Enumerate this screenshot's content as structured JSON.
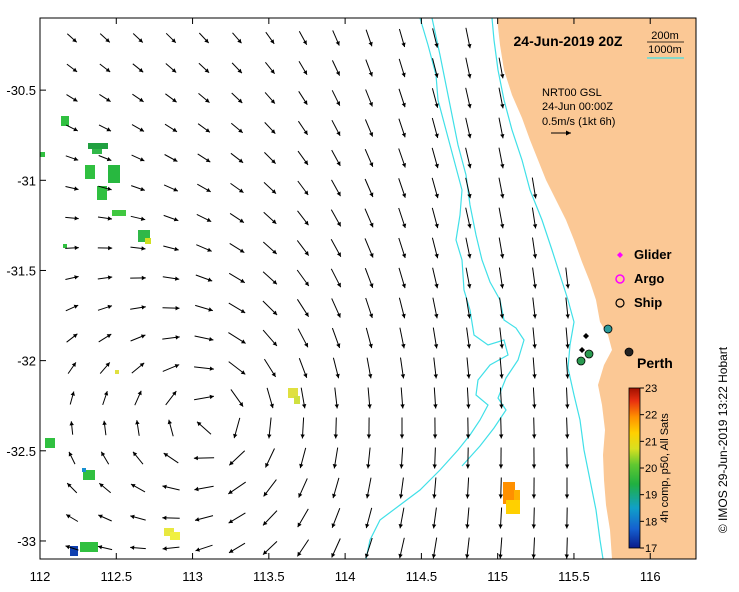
{
  "map": {
    "title": "24-Jun-2019 20Z",
    "bathymetry_legend": [
      "200m",
      "1000m"
    ],
    "product": {
      "line1": "NRT00 GSL",
      "line2": "24-Jun 00:00Z",
      "line3": "0.5m/s (1kt 6h)"
    },
    "city": "Perth",
    "credit": "© IMOS 29-Jun-2019 13:22 Hobart",
    "colorbar_label": "4h comp, p50, All Sats",
    "colorbar_ticks": [
      "23",
      "22",
      "21",
      "20",
      "19",
      "18",
      "17"
    ],
    "colorbar_range": [
      17,
      23
    ],
    "x_ticks": [
      "112",
      "112.5",
      "113",
      "113.5",
      "114",
      "114.5",
      "115",
      "115.5",
      "116"
    ],
    "y_ticks": [
      "-30.5",
      "-31",
      "-31.5",
      "-32",
      "-32.5",
      "-33"
    ],
    "lon_range": [
      112,
      116.3
    ],
    "lat_range": [
      -30.1,
      -33.1
    ],
    "legend": [
      {
        "label": "Glider",
        "symbol": "diamond",
        "color": "#ff00ff"
      },
      {
        "label": "Argo",
        "symbol": "circle",
        "color": "#ff00ff"
      },
      {
        "label": "Ship",
        "symbol": "circle",
        "color": "#000000"
      }
    ],
    "colors": {
      "land": "#fbc895",
      "isobath": "#40e0e8",
      "arrow": "#000000"
    }
  }
}
